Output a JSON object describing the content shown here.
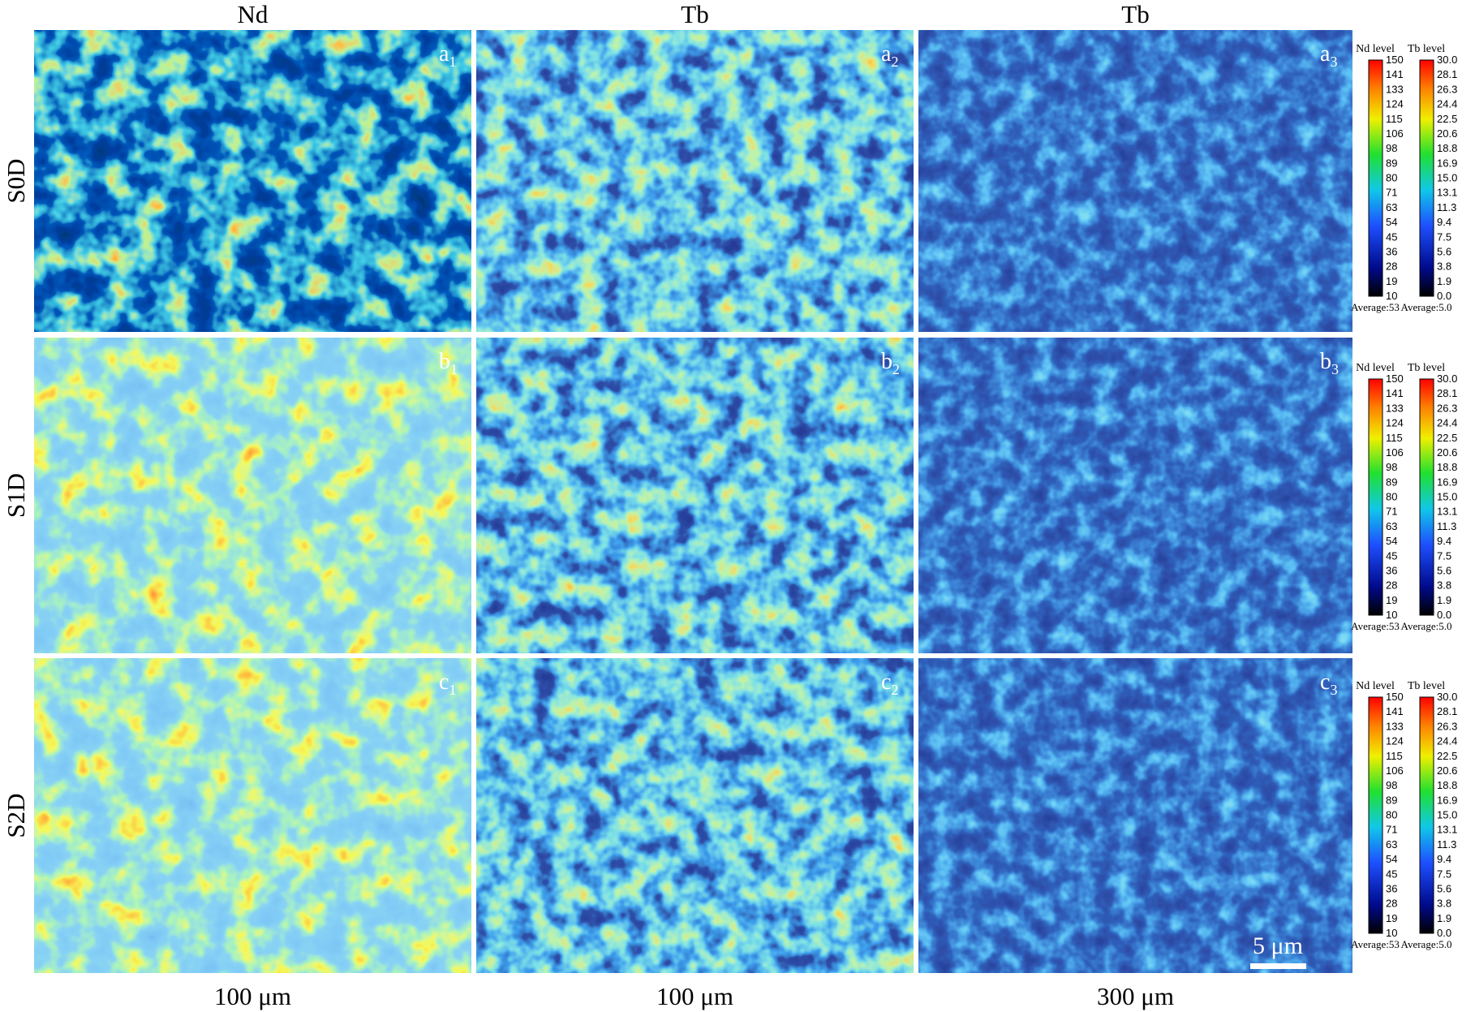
{
  "column_headers": [
    "Nd",
    "Tb",
    "Tb"
  ],
  "row_labels": [
    "S0D",
    "S1D",
    "S2D"
  ],
  "panels": [
    [
      {
        "letter": "a",
        "sub": "1"
      },
      {
        "letter": "a",
        "sub": "2"
      },
      {
        "letter": "a",
        "sub": "3"
      }
    ],
    [
      {
        "letter": "b",
        "sub": "1"
      },
      {
        "letter": "b",
        "sub": "2"
      },
      {
        "letter": "b",
        "sub": "3"
      }
    ],
    [
      {
        "letter": "c",
        "sub": "1"
      },
      {
        "letter": "c",
        "sub": "2"
      },
      {
        "letter": "c",
        "sub": "3"
      }
    ]
  ],
  "colorbars": [
    {
      "nd": {
        "title": "Nd level",
        "ticks": [
          "150",
          "141",
          "133",
          "124",
          "115",
          "106",
          "98",
          "89",
          "80",
          "71",
          "63",
          "54",
          "45",
          "36",
          "28",
          "19",
          "10"
        ],
        "average": "Average:53"
      },
      "tb": {
        "title": "Tb level",
        "ticks": [
          "30.0",
          "28.1",
          "26.3",
          "24.4",
          "22.5",
          "20.6",
          "18.8",
          "16.9",
          "15.0",
          "13.1",
          "11.3",
          "9.4",
          "7.5",
          "5.6",
          "3.8",
          "1.9",
          "0.0"
        ],
        "average": "Average:5.0"
      }
    },
    {
      "nd": {
        "title": "Nd level",
        "ticks": [
          "150",
          "141",
          "133",
          "124",
          "115",
          "106",
          "98",
          "89",
          "80",
          "71",
          "63",
          "54",
          "45",
          "36",
          "28",
          "19",
          "10"
        ],
        "average": "Average:53"
      },
      "tb": {
        "title": "Tb level",
        "ticks": [
          "30.0",
          "28.1",
          "26.3",
          "24.4",
          "22.5",
          "20.6",
          "18.8",
          "16.9",
          "15.0",
          "13.1",
          "11.3",
          "9.4",
          "7.5",
          "5.6",
          "3.8",
          "1.9",
          "0.0"
        ],
        "average": "Average:5.0"
      }
    },
    {
      "nd": {
        "title": "Nd level",
        "ticks": [
          "150",
          "141",
          "133",
          "124",
          "115",
          "106",
          "98",
          "89",
          "80",
          "71",
          "63",
          "54",
          "45",
          "36",
          "28",
          "19",
          "10"
        ],
        "average": "Average:53"
      },
      "tb": {
        "title": "Tb level",
        "ticks": [
          "30.0",
          "28.1",
          "26.3",
          "24.4",
          "22.5",
          "20.6",
          "18.8",
          "16.9",
          "15.0",
          "13.1",
          "11.3",
          "9.4",
          "7.5",
          "5.6",
          "3.8",
          "1.9",
          "0.0"
        ],
        "average": "Average:5.0"
      }
    }
  ],
  "scale_bar": "5 μm",
  "column_footers": [
    "100 μm",
    "100 μm",
    "300 μm"
  ]
}
